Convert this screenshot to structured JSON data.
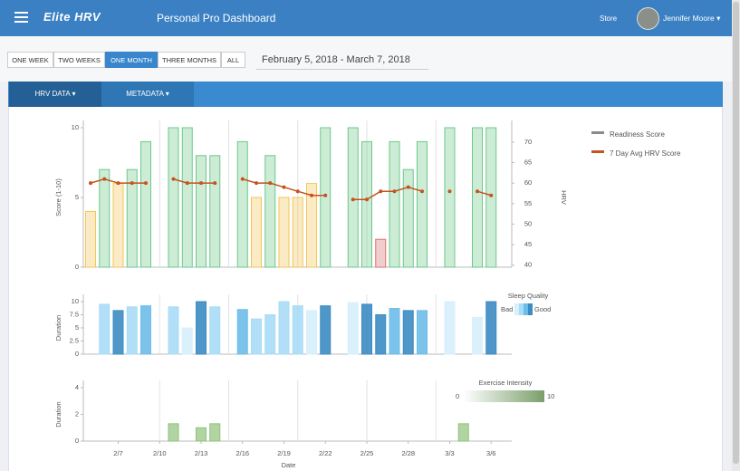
{
  "header": {
    "logo": "Elite HRV",
    "title": "Personal Pro Dashboard",
    "store": "Store",
    "user": "Jennifer Moore"
  },
  "range_buttons": [
    "ONE WEEK",
    "TWO WEEKS",
    "ONE MONTH",
    "THREE MONTHS",
    "ALL"
  ],
  "active_range": 2,
  "date_range": "February 5, 2018 - March 7, 2018",
  "tabs": [
    "HRV DATA",
    "METADATA"
  ],
  "chart_data": [
    {
      "type": "bar",
      "ylabel": "Score (1-10)",
      "y2label": "HRV",
      "ylim": [
        0,
        10
      ],
      "yticks": [
        0,
        5,
        10
      ],
      "y2lim": [
        39.5,
        73.5
      ],
      "y2ticks": [
        40,
        45,
        50,
        55,
        60,
        65,
        70
      ],
      "series": [
        {
          "name": "Readiness Score",
          "color": "#8a8a8a",
          "colors": [
            "#f2c65a",
            "#6cc88a",
            "#f2c65a",
            "#6cc88a",
            "#6cc88a",
            null,
            "#6cc88a",
            "#6cc88a",
            "#6cc88a",
            "#6cc88a",
            null,
            "#6cc88a",
            "#f2c65a",
            "#6cc88a",
            "#f2c65a",
            "#f2c65a",
            "#f2c65a",
            "#6cc88a",
            null,
            "#6cc88a",
            "#6cc88a",
            "#d9716f",
            "#6cc88a",
            "#6cc88a",
            "#6cc88a",
            null,
            "#6cc88a",
            null,
            "#6cc88a",
            "#6cc88a",
            null
          ],
          "values": [
            4,
            7,
            6,
            7,
            9,
            null,
            10,
            10,
            8,
            8,
            null,
            9,
            5,
            8,
            5,
            5,
            6,
            10,
            null,
            10,
            9,
            2,
            9,
            7,
            9,
            null,
            10,
            null,
            10,
            10,
            null
          ]
        },
        {
          "name": "7 Day Avg HRV Score",
          "type": "line",
          "axis": "y2",
          "color": "#c8511f",
          "values": [
            60,
            61,
            60,
            60,
            60,
            null,
            61,
            60,
            60,
            60,
            null,
            61,
            60,
            60,
            59,
            58,
            57,
            57,
            null,
            56,
            56,
            58,
            58,
            59,
            58,
            null,
            58,
            null,
            58,
            57,
            null
          ]
        }
      ]
    },
    {
      "type": "bar",
      "ylabel": "Duration",
      "ylim": [
        0,
        10
      ],
      "yticks": [
        0,
        2.5,
        5,
        7.5,
        10
      ],
      "legend": {
        "title": "Sleep Quality",
        "low": "Bad",
        "high": "Good",
        "colors": [
          "#d6f0fc",
          "#a9dcf6",
          "#6dbde9",
          "#3b8cc2"
        ]
      },
      "series": [
        {
          "colors": [
            null,
            "#a9dcf6",
            "#3b8cc2",
            "#a9dcf6",
            "#6dbde9",
            null,
            "#a9dcf6",
            "#d6f0fc",
            "#3b8cc2",
            "#a9dcf6",
            null,
            "#6dbde9",
            "#a9dcf6",
            "#a9dcf6",
            "#a9dcf6",
            "#a9dcf6",
            "#d6f0fc",
            "#3b8cc2",
            null,
            "#d6f0fc",
            "#3b8cc2",
            "#3b8cc2",
            "#6dbde9",
            "#3b8cc2",
            "#6dbde9",
            null,
            "#d6f0fc",
            null,
            "#d6f0fc",
            "#3b8cc2",
            null
          ],
          "values": [
            null,
            9.5,
            8.3,
            9,
            9.2,
            null,
            9,
            5,
            10,
            9,
            null,
            8.5,
            6.7,
            7.5,
            10,
            9.2,
            8.3,
            9.2,
            null,
            9.8,
            9.5,
            7.5,
            8.7,
            8.3,
            8.3,
            null,
            10,
            null,
            7,
            10,
            null
          ]
        }
      ]
    },
    {
      "type": "bar",
      "ylabel": "Duration",
      "xlabel": "Date",
      "ylim": [
        0,
        4
      ],
      "yticks": [
        0,
        2,
        4
      ],
      "categories": [
        null,
        null,
        "2/7",
        null,
        null,
        "2/10",
        null,
        null,
        "2/13",
        null,
        null,
        "2/16",
        null,
        null,
        "2/19",
        null,
        null,
        "2/22",
        null,
        null,
        "2/25",
        null,
        null,
        "2/28",
        null,
        null,
        "3/3",
        null,
        null,
        "3/6",
        null
      ],
      "legend": {
        "title": "Exercise Intensity",
        "range": [
          0,
          10
        ],
        "colors": [
          "#ffffff",
          "#7a9e6a"
        ]
      },
      "series": [
        {
          "color": "#8fc27a",
          "values": [
            null,
            null,
            null,
            null,
            null,
            null,
            1.3,
            null,
            1.0,
            1.3,
            null,
            null,
            null,
            null,
            null,
            null,
            null,
            null,
            null,
            null,
            null,
            null,
            null,
            null,
            null,
            null,
            null,
            1.3,
            null,
            null,
            null
          ]
        }
      ]
    }
  ]
}
